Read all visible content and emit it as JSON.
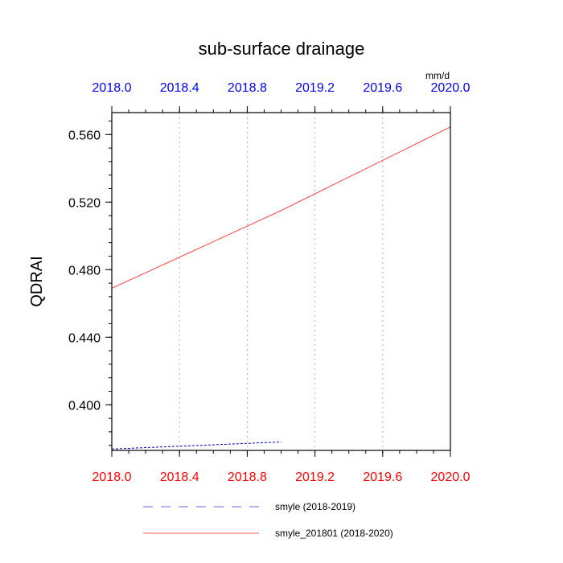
{
  "chart_data": {
    "type": "line",
    "title": "sub-surface drainage",
    "units": "mm/d",
    "xlabel": "",
    "ylabel": "QDRAI",
    "xlim": [
      2018.0,
      2020.0
    ],
    "ylim": [
      0.373,
      0.573
    ],
    "xticks": [
      "2018.0",
      "2018.4",
      "2018.8",
      "2019.2",
      "2019.6",
      "2020.0"
    ],
    "yticks": [
      "0.400",
      "0.440",
      "0.480",
      "0.520",
      "0.560"
    ],
    "grid": true,
    "legend": "bottom",
    "series": [
      {
        "name": "smyle (2018-2019)",
        "color": "#0000cc",
        "dash": "dashed",
        "axis": "top",
        "x": [
          2018.0,
          2019.0
        ],
        "y": [
          0.3738,
          0.378
        ]
      },
      {
        "name": "smyle_201801 (2018-2020)",
        "color": "#ff3b3b",
        "dash": "solid",
        "axis": "bottom",
        "x": [
          2018.0,
          2019.0,
          2020.0
        ],
        "y": [
          0.469,
          0.515,
          0.5645
        ]
      }
    ],
    "top_axis_color": "#0000ff",
    "bottom_axis_color": "#ff0000"
  }
}
